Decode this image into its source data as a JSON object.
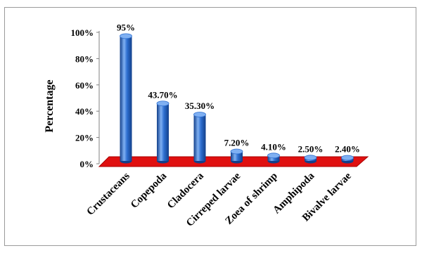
{
  "chart_data": {
    "type": "bar",
    "ylabel": "Percentage",
    "ylim": [
      0,
      100
    ],
    "yticks": [
      "0%",
      "20%",
      "40%",
      "60%",
      "80%",
      "100%"
    ],
    "categories": [
      "Crustaceans",
      "Copepoda",
      "Cladocera",
      "Cirreped larvae",
      "Zoea of shrimp",
      "Amphipoda",
      "Bivalve larvae"
    ],
    "values": [
      95,
      43.7,
      35.3,
      7.2,
      4.1,
      2.5,
      2.4
    ],
    "data_labels": [
      "95%",
      "43.70%",
      "35.30%",
      "7.20%",
      "4.10%",
      "2.50%",
      "2.40%"
    ],
    "colors": {
      "bar": "#2e6fd0",
      "bar_dark": "#123f8a",
      "bar_light": "#7fb0f2",
      "floor": "#e01010",
      "floor_edge": "#a80000"
    }
  }
}
